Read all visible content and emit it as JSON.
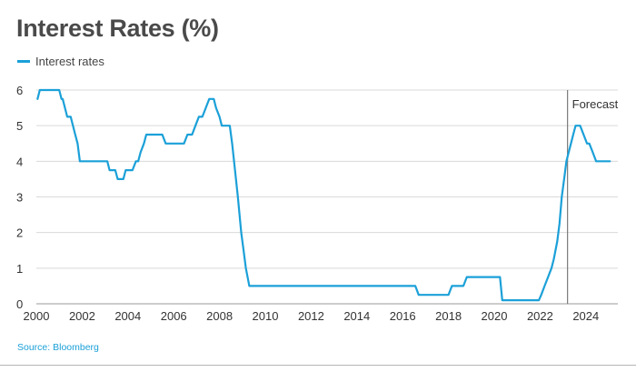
{
  "header": {
    "title": "Interest Rates (%)"
  },
  "legend": {
    "label": "Interest rates"
  },
  "source": {
    "text": "Source: Bloomberg"
  },
  "colors": {
    "series": "#1ba0d8",
    "grid": "#d9d9d9",
    "forecast_line": "#7a7a7a",
    "source": "#1ba0d8"
  },
  "chart_data": {
    "type": "line",
    "title": "Interest Rates (%)",
    "xlabel": "",
    "ylabel": "",
    "xlim": [
      2000,
      2025.3
    ],
    "ylim": [
      0,
      6
    ],
    "x_ticks": [
      2000,
      2002,
      2004,
      2006,
      2008,
      2010,
      2012,
      2014,
      2016,
      2018,
      2020,
      2022,
      2024
    ],
    "y_ticks": [
      0,
      1,
      2,
      3,
      4,
      5,
      6
    ],
    "grid": "horizontal",
    "legend_position": "top-left",
    "annotations": [
      {
        "text": "Forecast",
        "x": 2023.2
      }
    ],
    "series": [
      {
        "name": "Interest rates",
        "x": [
          2000.05,
          2000.15,
          2000.4,
          2000.6,
          2000.75,
          2001.0,
          2001.1,
          2001.15,
          2001.25,
          2001.35,
          2001.5,
          2001.6,
          2001.7,
          2001.8,
          2001.9,
          2002.0,
          2003.1,
          2003.2,
          2003.45,
          2003.55,
          2003.8,
          2003.9,
          2004.2,
          2004.35,
          2004.45,
          2004.55,
          2004.7,
          2004.8,
          2005.0,
          2005.5,
          2005.65,
          2005.8,
          2006.0,
          2006.45,
          2006.6,
          2006.8,
          2006.95,
          2007.1,
          2007.25,
          2007.4,
          2007.55,
          2007.7,
          2007.75,
          2007.85,
          2008.0,
          2008.1,
          2008.2,
          2008.3,
          2008.45,
          2008.55,
          2008.8,
          2008.95,
          2009.05,
          2009.15,
          2009.3,
          2009.45,
          2009.6,
          2016.55,
          2016.7,
          2018.0,
          2018.15,
          2018.65,
          2018.8,
          2020.25,
          2020.35,
          2020.5,
          2021.95,
          2022.05,
          2022.2,
          2022.35,
          2022.5,
          2022.6,
          2022.75,
          2022.85,
          2022.95,
          2023.05,
          2023.15,
          2023.25,
          2023.35,
          2023.45,
          2023.55,
          2023.65,
          2023.75,
          2023.9,
          2024.05,
          2024.15,
          2024.3,
          2024.45,
          2024.6,
          2024.75,
          2025.05
        ],
        "values": [
          5.75,
          6.0,
          6.0,
          6.0,
          6.0,
          6.0,
          5.75,
          5.75,
          5.5,
          5.25,
          5.25,
          5.0,
          4.75,
          4.5,
          4.0,
          4.0,
          4.0,
          3.75,
          3.75,
          3.5,
          3.5,
          3.75,
          3.75,
          4.0,
          4.0,
          4.25,
          4.5,
          4.75,
          4.75,
          4.75,
          4.5,
          4.5,
          4.5,
          4.5,
          4.75,
          4.75,
          5.0,
          5.25,
          5.25,
          5.5,
          5.75,
          5.75,
          5.75,
          5.5,
          5.25,
          5.0,
          5.0,
          5.0,
          5.0,
          4.5,
          3.0,
          2.0,
          1.5,
          1.0,
          0.5,
          0.5,
          0.5,
          0.5,
          0.25,
          0.25,
          0.5,
          0.5,
          0.75,
          0.75,
          0.1,
          0.1,
          0.1,
          0.25,
          0.5,
          0.75,
          1.0,
          1.25,
          1.75,
          2.25,
          3.0,
          3.5,
          4.0,
          4.25,
          4.5,
          4.75,
          5.0,
          5.0,
          5.0,
          4.75,
          4.5,
          4.5,
          4.25,
          4.0,
          4.0,
          4.0,
          4.0
        ]
      }
    ]
  }
}
